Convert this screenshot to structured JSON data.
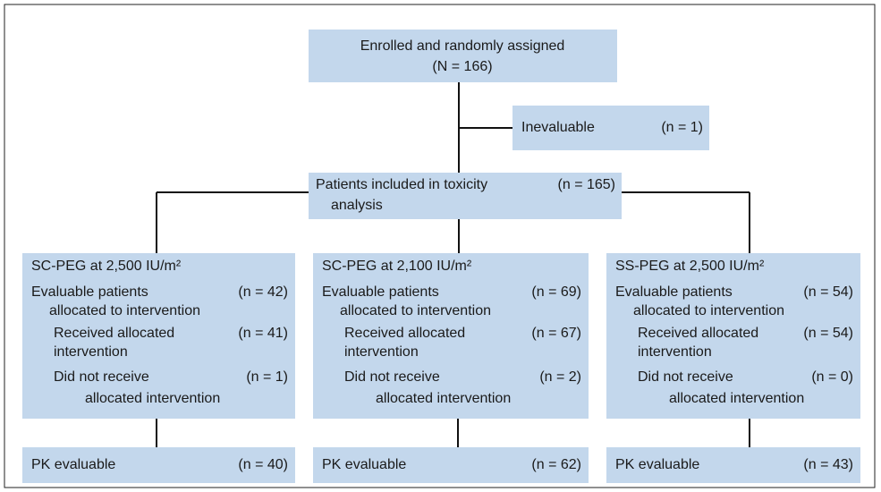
{
  "enrolled": {
    "lines": [
      "Enrolled and randomly assigned",
      "(N = 166)"
    ]
  },
  "excluded": {
    "label": "Inevaluable",
    "count": "(n = 1)"
  },
  "toxicity": {
    "lines": [
      "Patients included in toxicity",
      "analysis"
    ],
    "count": "(n = 165)"
  },
  "arms": [
    {
      "title": "SC-PEG at 2,500 IU/m²",
      "rows": [
        {
          "lines": [
            "Evaluable patients",
            "allocated to intervention"
          ],
          "count": "(n = 42)"
        },
        {
          "lines": [
            "Received allocated",
            "intervention"
          ],
          "count": "(n = 41)"
        },
        {
          "lines": [
            "Did not receive",
            "allocated intervention"
          ],
          "count": "(n = 1)"
        }
      ],
      "pk": {
        "label": "PK evaluable",
        "count": "(n = 40)"
      }
    },
    {
      "title": "SC-PEG at 2,100 IU/m²",
      "rows": [
        {
          "lines": [
            "Evaluable patients",
            "allocated to intervention"
          ],
          "count": "(n = 69)"
        },
        {
          "lines": [
            "Received allocated",
            "intervention"
          ],
          "count": "(n = 67)"
        },
        {
          "lines": [
            "Did not receive",
            "allocated intervention"
          ],
          "count": "(n = 2)"
        }
      ],
      "pk": {
        "label": "PK evaluable",
        "count": "(n = 62)"
      }
    },
    {
      "title": "SS-PEG at 2,500 IU/m²",
      "rows": [
        {
          "lines": [
            "Evaluable patients",
            "allocated to intervention"
          ],
          "count": "(n = 54)"
        },
        {
          "lines": [
            "Received allocated",
            "intervention"
          ],
          "count": "(n = 54)"
        },
        {
          "lines": [
            "Did not receive",
            "allocated intervention"
          ],
          "count": "(n = 0)"
        }
      ],
      "pk": {
        "label": "PK evaluable",
        "count": "(n = 43)"
      }
    }
  ]
}
